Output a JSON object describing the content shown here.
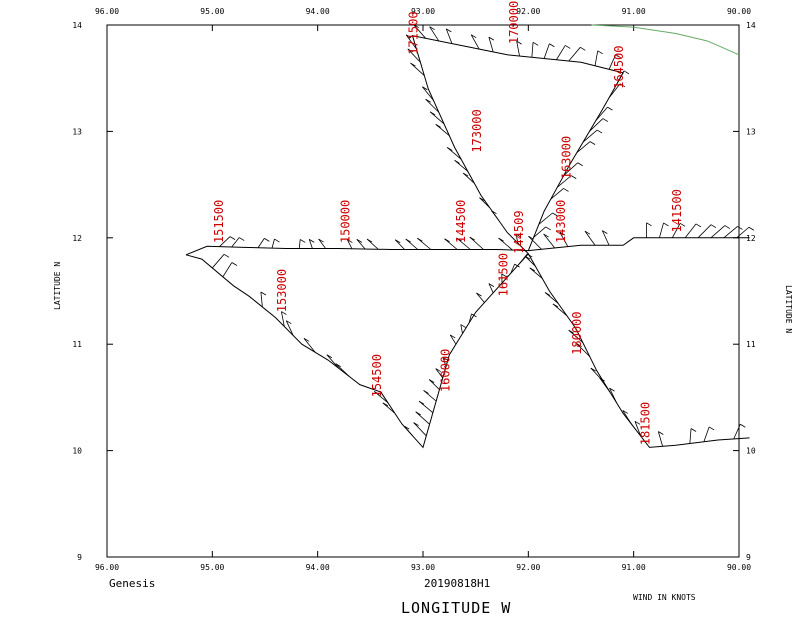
{
  "chart_data": {
    "type": "wind-barb-flight-track",
    "footer": {
      "left": "Genesis",
      "center": "20190818H1",
      "right": "WIND IN KNOTS"
    },
    "xlabel": "LONGITUDE   W",
    "ylabel": "LATITUDE   N",
    "xlim": [
      -96,
      -90
    ],
    "ylim": [
      9,
      14
    ],
    "x_ticks": [
      -96,
      -95,
      -94,
      -93,
      -92,
      -91,
      -90
    ],
    "x_tick_labels": [
      "96.00",
      "95.00",
      "94.00",
      "93.00",
      "92.00",
      "91.00",
      "90.00"
    ],
    "y_ticks": [
      9,
      10,
      11,
      12,
      13,
      14
    ],
    "y_tick_labels": [
      "9",
      "10",
      "11",
      "12",
      "13",
      "14"
    ],
    "colors": {
      "track": "#000000",
      "time_label": "#cc0000",
      "coastline": "#66aa66",
      "frame": "#000000"
    },
    "track": [
      [
        -95.25,
        11.84
      ],
      [
        -95.05,
        11.92
      ],
      [
        -94.7,
        11.91
      ],
      [
        -94.3,
        11.9
      ],
      [
        -93.8,
        11.9
      ],
      [
        -93.3,
        11.89
      ],
      [
        -92.8,
        11.89
      ],
      [
        -92.3,
        11.89
      ],
      [
        -92.0,
        11.88
      ],
      [
        -91.5,
        11.93
      ],
      [
        -91.1,
        11.93
      ],
      [
        -91.0,
        12.0
      ],
      [
        -90.0,
        12.0
      ],
      [
        -89.9,
        12.0
      ]
    ],
    "track_segments": [
      [
        [
          -95.25,
          11.84
        ],
        [
          -95.05,
          11.92
        ],
        [
          -94.7,
          11.91
        ],
        [
          -94.3,
          11.9
        ],
        [
          -93.8,
          11.9
        ],
        [
          -93.3,
          11.89
        ],
        [
          -92.8,
          11.89
        ],
        [
          -92.3,
          11.89
        ],
        [
          -92.0,
          11.88
        ],
        [
          -91.5,
          11.93
        ],
        [
          -91.1,
          11.93
        ],
        [
          -91.0,
          12.0
        ],
        [
          -89.9,
          12.0
        ]
      ],
      [
        [
          -92.0,
          11.85
        ],
        [
          -92.5,
          11.3
        ],
        [
          -92.75,
          10.9
        ],
        [
          -93.0,
          10.03
        ],
        [
          -93.2,
          10.25
        ],
        [
          -93.4,
          10.55
        ],
        [
          -93.6,
          10.62
        ],
        [
          -93.9,
          10.85
        ],
        [
          -94.15,
          11.0
        ],
        [
          -94.4,
          11.25
        ],
        [
          -94.65,
          11.45
        ],
        [
          -94.8,
          11.55
        ],
        [
          -95.1,
          11.8
        ],
        [
          -95.25,
          11.84
        ]
      ],
      [
        [
          -92.0,
          11.85
        ],
        [
          -92.2,
          12.05
        ],
        [
          -92.45,
          12.4
        ],
        [
          -92.7,
          12.85
        ],
        [
          -92.95,
          13.4
        ],
        [
          -93.1,
          13.9
        ],
        [
          -92.6,
          13.8
        ],
        [
          -92.2,
          13.72
        ],
        [
          -91.5,
          13.65
        ],
        [
          -91.1,
          13.55
        ],
        [
          -91.3,
          13.2
        ],
        [
          -91.6,
          12.7
        ],
        [
          -91.85,
          12.25
        ],
        [
          -92.0,
          11.88
        ]
      ],
      [
        [
          -92.0,
          11.85
        ],
        [
          -91.8,
          11.5
        ],
        [
          -91.55,
          11.15
        ],
        [
          -91.35,
          10.75
        ],
        [
          -91.1,
          10.35
        ],
        [
          -90.85,
          10.03
        ],
        [
          -90.6,
          10.05
        ],
        [
          -90.2,
          10.1
        ],
        [
          -89.9,
          10.12
        ]
      ]
    ],
    "time_labels": [
      {
        "text": "151500",
        "lon": -94.9,
        "lat": 11.95
      },
      {
        "text": "150000",
        "lon": -93.7,
        "lat": 11.95
      },
      {
        "text": "144500",
        "lon": -92.6,
        "lat": 11.95
      },
      {
        "text": "141500",
        "lon": -90.55,
        "lat": 12.05
      },
      {
        "text": "143000",
        "lon": -91.65,
        "lat": 11.95
      },
      {
        "text": "144509",
        "lon": -92.05,
        "lat": 11.85
      },
      {
        "text": "161500",
        "lon": -92.2,
        "lat": 11.45
      },
      {
        "text": "153000",
        "lon": -94.3,
        "lat": 11.3
      },
      {
        "text": "154500",
        "lon": -93.4,
        "lat": 10.5
      },
      {
        "text": "160000",
        "lon": -92.75,
        "lat": 10.55
      },
      {
        "text": "180000",
        "lon": -91.5,
        "lat": 10.9
      },
      {
        "text": "181500",
        "lon": -90.85,
        "lat": 10.05
      },
      {
        "text": "163000",
        "lon": -91.6,
        "lat": 12.55
      },
      {
        "text": "173000",
        "lon": -92.45,
        "lat": 12.8
      },
      {
        "text": "171500",
        "lon": -93.05,
        "lat": 13.72
      },
      {
        "text": "170000",
        "lon": -92.1,
        "lat": 13.82
      },
      {
        "text": "164500",
        "lon": -91.1,
        "lat": 13.4
      }
    ],
    "coastline": [
      [
        -91.4,
        14.0
      ],
      [
        -91.0,
        13.98
      ],
      [
        -90.6,
        13.92
      ],
      [
        -90.3,
        13.85
      ],
      [
        -90.0,
        13.72
      ]
    ],
    "grid": false
  }
}
